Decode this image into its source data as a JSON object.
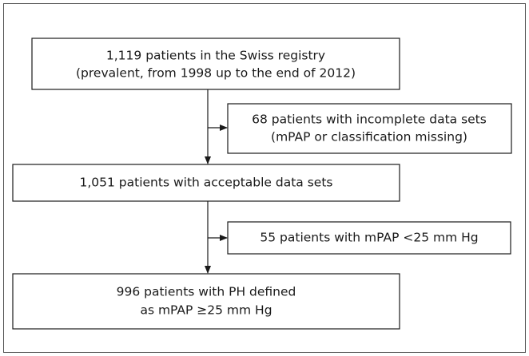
{
  "nodes": [
    {
      "lines": [
        "1,119 patients in the Swiss registry",
        "(prevalent, from 1998 up to the end of 2012)"
      ]
    },
    {
      "lines": [
        "68 patients with incomplete data sets",
        "(mPAP or classification missing)"
      ]
    },
    {
      "lines": [
        "1,051 patients with acceptable data sets"
      ]
    },
    {
      "lines": [
        "55 patients with mPAP <25 mm Hg"
      ]
    },
    {
      "lines": [
        "996 patients with PH defined",
        "as mPAP ≥25 mm Hg"
      ]
    }
  ]
}
